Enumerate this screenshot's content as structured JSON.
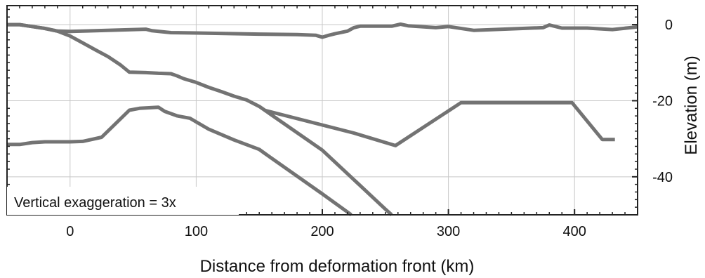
{
  "chart_data": {
    "type": "line",
    "xlabel": "Distance from deformation front (km)",
    "ylabel": "Elevation (m)",
    "xlim": [
      -50,
      450
    ],
    "ylim": [
      -50,
      5
    ],
    "x_ticks": [
      0,
      100,
      200,
      300,
      400
    ],
    "y_ticks": [
      0,
      -20,
      -40
    ],
    "x_tick_labels": [
      "0",
      "100",
      "200",
      "300",
      "400"
    ],
    "y_tick_labels": [
      "0",
      "-20",
      "-40"
    ],
    "grid": true,
    "y_axis_side": "right",
    "annotation": "Vertical exaggeration = 3x",
    "series": [
      {
        "x": [
          -50,
          -40,
          -30,
          -20,
          -10,
          0,
          20,
          60,
          65,
          80,
          100,
          150,
          180,
          195,
          200,
          205,
          210,
          220,
          225,
          230,
          240,
          255,
          262,
          268,
          290,
          300,
          320,
          350,
          375,
          380,
          390,
          410,
          430,
          450
        ],
        "y": [
          0,
          0,
          -0.5,
          -1,
          -1.7,
          -1.8,
          -1.6,
          -1.2,
          -1.6,
          -2.1,
          -2.2,
          -2.5,
          -2.6,
          -2.8,
          -3.3,
          -2.8,
          -2.4,
          -1.7,
          -0.8,
          -0.4,
          -0.4,
          -0.4,
          0.1,
          -0.3,
          -0.8,
          -0.5,
          -1.5,
          -1.1,
          -0.8,
          -0.1,
          -0.9,
          -0.9,
          -1.3,
          -0.6
        ]
      },
      {
        "x": [
          -50,
          -40,
          -30,
          -20,
          -10,
          0,
          10,
          20,
          30,
          40,
          47,
          60,
          70,
          80,
          85,
          90,
          100,
          110,
          120,
          130,
          140,
          150,
          200,
          250,
          255
        ],
        "y": [
          0,
          0,
          -0.5,
          -1,
          -1.7,
          -3,
          -4.8,
          -6.6,
          -8.4,
          -10.6,
          -12.5,
          -12.6,
          -12.8,
          -12.9,
          -13.5,
          -14.2,
          -15.2,
          -16.5,
          -17.6,
          -18.8,
          -19.8,
          -21.5,
          -33,
          -48.5,
          -50
        ]
      },
      {
        "x": [
          -50,
          -40,
          -30,
          -20,
          0,
          10,
          25,
          47,
          55,
          70,
          75,
          85,
          95,
          110,
          130,
          150,
          155,
          200,
          223
        ],
        "y": [
          -31.5,
          -31.5,
          -31,
          -30.8,
          -30.8,
          -30.7,
          -29.6,
          -22.5,
          -22,
          -21.7,
          -22.8,
          -24,
          -24.6,
          -27.5,
          -30.3,
          -32.8,
          -34,
          -44.5,
          -50
        ]
      },
      {
        "x": [
          154,
          225,
          258,
          310,
          398,
          422,
          432
        ],
        "y": [
          -22.5,
          -28.5,
          -31.8,
          -20.5,
          -20.5,
          -30.2,
          -30.2
        ]
      }
    ]
  }
}
